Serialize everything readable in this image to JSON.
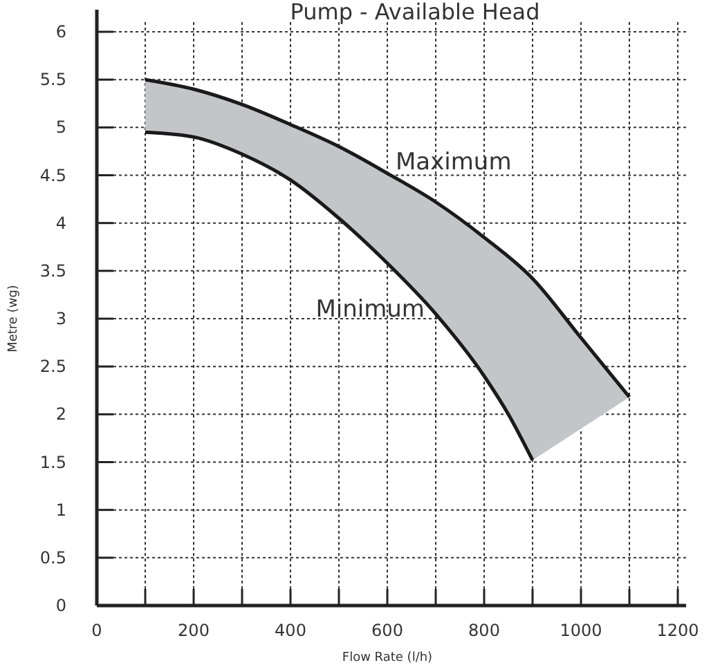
{
  "chart_data": {
    "type": "line",
    "title": "Pump - Available Head",
    "xlabel": "Flow Rate  (l/h)",
    "ylabel": "Metre  (wg)",
    "xlim": [
      0,
      1200
    ],
    "ylim": [
      0,
      6
    ],
    "xticks": [
      0,
      {
        "value": 100,
        "label": null
      },
      200,
      {
        "value": 300,
        "label": null
      },
      400,
      {
        "value": 500,
        "label": null
      },
      600,
      {
        "value": 700,
        "label": null
      },
      800,
      {
        "value": 900,
        "label": null
      },
      1000,
      {
        "value": 1100,
        "label": null
      },
      1200
    ],
    "yticks": [
      0,
      0.5,
      1,
      1.5,
      2,
      2.5,
      3,
      3.5,
      4,
      4.5,
      5,
      5.5,
      6
    ],
    "grid": true,
    "line_style": "solid",
    "series": [
      {
        "name": "Maximum",
        "color": "#1a1a1a",
        "x": [
          100,
          200,
          300,
          400,
          500,
          600,
          700,
          800,
          900,
          1000,
          1100
        ],
        "values": [
          5.5,
          5.4,
          5.24,
          5.03,
          4.8,
          4.52,
          4.22,
          3.85,
          3.42,
          2.8,
          2.18
        ]
      },
      {
        "name": "Minimum",
        "color": "#1a1a1a",
        "x": [
          100,
          200,
          300,
          400,
          500,
          600,
          700,
          800,
          850,
          900
        ],
        "values": [
          4.95,
          4.9,
          4.72,
          4.45,
          4.05,
          3.58,
          3.05,
          2.4,
          2.0,
          1.52
        ]
      }
    ]
  }
}
